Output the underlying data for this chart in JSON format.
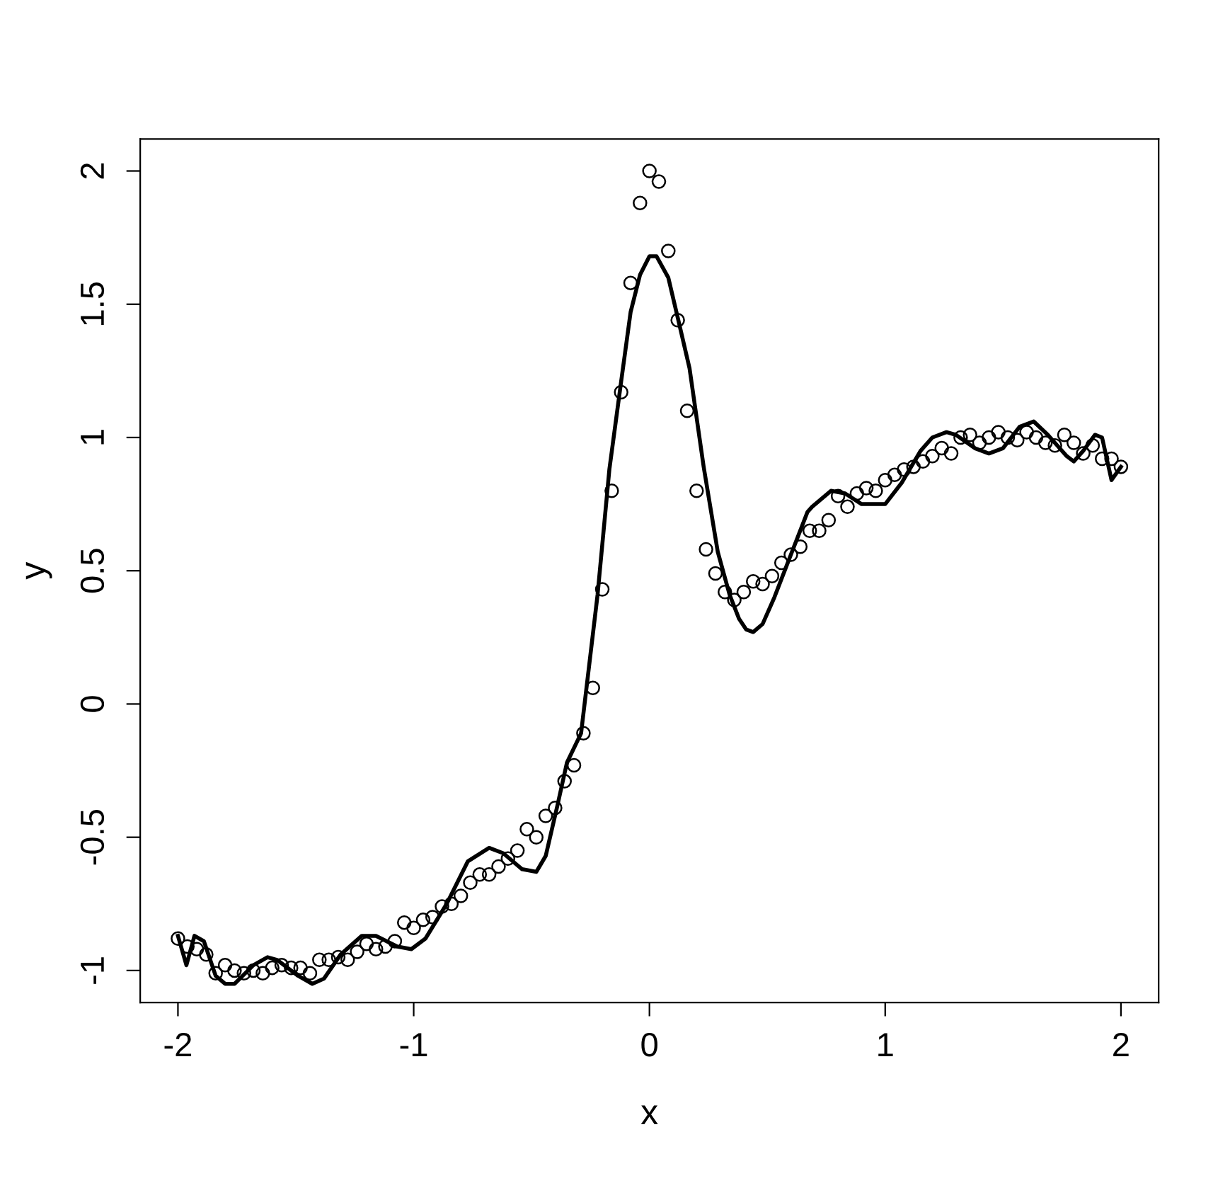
{
  "chart_data": {
    "type": "scatter",
    "xlabel": "x",
    "ylabel": "y",
    "xlim": [
      -2.16,
      2.16
    ],
    "ylim": [
      -1.12,
      2.12
    ],
    "xticks": [
      -2,
      -1,
      0,
      1,
      2
    ],
    "yticks": [
      -1,
      -0.5,
      0,
      0.5,
      1,
      1.5,
      2
    ],
    "grid": false,
    "legend": false,
    "series": [
      {
        "marker": "circle",
        "color": "#000000",
        "x": [
          -2.0,
          -1.96,
          -1.92,
          -1.88,
          -1.84,
          -1.8,
          -1.76,
          -1.72,
          -1.68,
          -1.64,
          -1.6,
          -1.56,
          -1.52,
          -1.48,
          -1.44,
          -1.4,
          -1.36,
          -1.32,
          -1.28,
          -1.24,
          -1.2,
          -1.16,
          -1.12,
          -1.08,
          -1.04,
          -1.0,
          -0.96,
          -0.92,
          -0.88,
          -0.84,
          -0.8,
          -0.76,
          -0.72,
          -0.68,
          -0.64,
          -0.6,
          -0.56,
          -0.52,
          -0.48,
          -0.44,
          -0.4,
          -0.36,
          -0.32,
          -0.28,
          -0.24,
          -0.2,
          -0.16,
          -0.12,
          -0.08,
          -0.04,
          0.0,
          0.04,
          0.08,
          0.12,
          0.16,
          0.2,
          0.24,
          0.28,
          0.32,
          0.36,
          0.4,
          0.44,
          0.48,
          0.52,
          0.56,
          0.6,
          0.64,
          0.68,
          0.72,
          0.76,
          0.8,
          0.84,
          0.88,
          0.92,
          0.96,
          1.0,
          1.04,
          1.08,
          1.12,
          1.16,
          1.2,
          1.24,
          1.28,
          1.32,
          1.36,
          1.4,
          1.44,
          1.48,
          1.52,
          1.56,
          1.6,
          1.64,
          1.68,
          1.72,
          1.76,
          1.8,
          1.84,
          1.88,
          1.92,
          1.96,
          2.0
        ],
        "values": [
          -0.88,
          -0.91,
          -0.92,
          -0.94,
          -1.01,
          -0.98,
          -1.0,
          -1.01,
          -1.0,
          -1.01,
          -0.99,
          -0.98,
          -0.99,
          -0.99,
          -1.01,
          -0.96,
          -0.96,
          -0.95,
          -0.96,
          -0.93,
          -0.9,
          -0.92,
          -0.91,
          -0.89,
          -0.82,
          -0.84,
          -0.81,
          -0.8,
          -0.76,
          -0.75,
          -0.72,
          -0.67,
          -0.64,
          -0.64,
          -0.61,
          -0.58,
          -0.55,
          -0.47,
          -0.5,
          -0.42,
          -0.39,
          -0.29,
          -0.23,
          -0.11,
          0.06,
          0.43,
          0.8,
          1.17,
          1.58,
          1.88,
          2.0,
          1.96,
          1.7,
          1.44,
          1.1,
          0.8,
          0.58,
          0.49,
          0.42,
          0.39,
          0.42,
          0.46,
          0.45,
          0.48,
          0.53,
          0.56,
          0.59,
          0.65,
          0.65,
          0.69,
          0.78,
          0.74,
          0.79,
          0.81,
          0.8,
          0.84,
          0.86,
          0.88,
          0.89,
          0.91,
          0.93,
          0.96,
          0.94,
          1.0,
          1.01,
          0.98,
          1.0,
          1.02,
          1.0,
          0.99,
          1.02,
          1.0,
          0.98,
          0.97,
          1.01,
          0.98,
          0.94,
          0.97,
          0.92,
          0.92,
          0.89
        ]
      },
      {
        "type": "line",
        "marker": "none",
        "line_style": "solid",
        "color": "#000000",
        "x": [
          -2.0,
          -1.964,
          -1.93,
          -1.89,
          -1.84,
          -1.8,
          -1.76,
          -1.68,
          -1.62,
          -1.58,
          -1.49,
          -1.43,
          -1.38,
          -1.31,
          -1.22,
          -1.16,
          -1.07,
          -1.01,
          -0.95,
          -0.86,
          -0.77,
          -0.68,
          -0.62,
          -0.54,
          -0.48,
          -0.44,
          -0.39,
          -0.35,
          -0.29,
          -0.22,
          -0.17,
          -0.12,
          -0.08,
          -0.04,
          0.0,
          0.03,
          0.08,
          0.12,
          0.17,
          0.23,
          0.29,
          0.34,
          0.38,
          0.41,
          0.44,
          0.48,
          0.53,
          0.6,
          0.67,
          0.69,
          0.77,
          0.83,
          0.9,
          1.0,
          1.07,
          1.15,
          1.2,
          1.26,
          1.3,
          1.38,
          1.44,
          1.5,
          1.57,
          1.63,
          1.69,
          1.77,
          1.8,
          1.84,
          1.89,
          1.92,
          1.96,
          2.0
        ],
        "values": [
          -0.87,
          -0.98,
          -0.87,
          -0.89,
          -1.02,
          -1.05,
          -1.05,
          -0.98,
          -0.95,
          -0.96,
          -1.02,
          -1.05,
          -1.03,
          -0.94,
          -0.87,
          -0.87,
          -0.91,
          -0.92,
          -0.88,
          -0.75,
          -0.59,
          -0.54,
          -0.56,
          -0.62,
          -0.63,
          -0.57,
          -0.38,
          -0.22,
          -0.11,
          0.41,
          0.88,
          1.21,
          1.47,
          1.61,
          1.68,
          1.68,
          1.6,
          1.45,
          1.26,
          0.89,
          0.57,
          0.41,
          0.32,
          0.28,
          0.27,
          0.3,
          0.4,
          0.56,
          0.72,
          0.74,
          0.8,
          0.79,
          0.75,
          0.75,
          0.83,
          0.95,
          1.0,
          1.02,
          1.01,
          0.96,
          0.94,
          0.96,
          1.04,
          1.06,
          1.01,
          0.93,
          0.91,
          0.95,
          1.01,
          1.0,
          0.84,
          0.89
        ]
      }
    ]
  }
}
